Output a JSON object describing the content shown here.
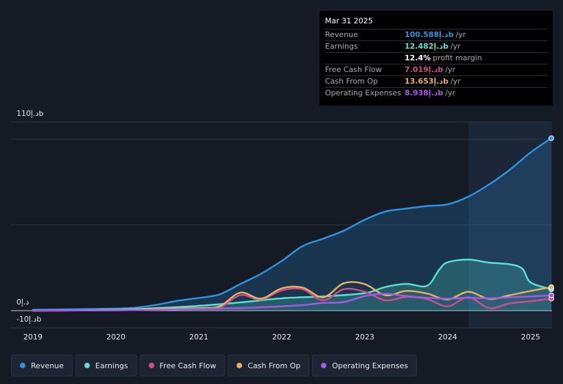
{
  "chart_data": {
    "type": "area",
    "y_unit": "د.إb",
    "y_tick_labels": [
      "110د.إb",
      "0د.إ",
      "-10د.إb"
    ],
    "ylim": [
      -10,
      110
    ],
    "xlim": [
      2019.0,
      2025.25
    ],
    "x_tick_labels": [
      "2019",
      "2020",
      "2021",
      "2022",
      "2023",
      "2024",
      "2025"
    ],
    "x_ticks": [
      2019,
      2020,
      2021,
      2022,
      2023,
      2024,
      2025
    ],
    "highlight_from": 2024.25,
    "grid": true,
    "series": [
      {
        "name": "Revenue",
        "color": "#2b95e4",
        "fill": true,
        "x": [
          2019.0,
          2019.5,
          2020.0,
          2020.25,
          2020.5,
          2020.75,
          2021.0,
          2021.25,
          2021.5,
          2021.75,
          2022.0,
          2022.25,
          2022.5,
          2022.75,
          2023.0,
          2023.25,
          2023.5,
          2023.75,
          2024.0,
          2024.25,
          2024.5,
          2024.75,
          2025.0,
          2025.25
        ],
        "y": [
          0.5,
          0.8,
          1.2,
          1.8,
          3.5,
          5.8,
          7.4,
          9.5,
          15.5,
          21.5,
          29.0,
          37.6,
          42.0,
          46.7,
          53.0,
          57.8,
          59.5,
          61.0,
          62.0,
          66.5,
          73.6,
          82.2,
          92.3,
          100.6
        ]
      },
      {
        "name": "Earnings",
        "color": "#58e0d1",
        "fill": true,
        "x": [
          2019.0,
          2020.0,
          2020.5,
          2021.0,
          2021.5,
          2022.0,
          2022.5,
          2023.0,
          2023.25,
          2023.5,
          2023.75,
          2023.9,
          2024.0,
          2024.25,
          2024.5,
          2024.75,
          2024.9,
          2025.0,
          2025.25
        ],
        "y": [
          0.0,
          0.5,
          1.5,
          2.8,
          4.8,
          7.2,
          8.3,
          10.2,
          13.8,
          15.6,
          14.5,
          24.0,
          28.2,
          29.8,
          28.0,
          27.0,
          24.5,
          16.5,
          12.5
        ]
      },
      {
        "name": "Free Cash Flow",
        "color": "#d24c88",
        "fill": false,
        "x": [
          2019.0,
          2020.0,
          2020.5,
          2021.0,
          2021.25,
          2021.5,
          2021.75,
          2022.0,
          2022.25,
          2022.5,
          2022.75,
          2023.0,
          2023.25,
          2023.5,
          2023.75,
          2024.0,
          2024.25,
          2024.5,
          2024.75,
          2025.0,
          2025.25
        ],
        "y": [
          0.0,
          0.2,
          0.8,
          1.2,
          1.8,
          9.0,
          6.5,
          11.8,
          12.5,
          6.0,
          12.5,
          11.0,
          6.0,
          8.0,
          6.8,
          2.5,
          7.8,
          1.5,
          4.2,
          5.5,
          7.0
        ]
      },
      {
        "name": "Cash From Op",
        "color": "#e8b15c",
        "fill": false,
        "x": [
          2019.0,
          2020.0,
          2020.5,
          2021.0,
          2021.25,
          2021.5,
          2021.75,
          2022.0,
          2022.25,
          2022.5,
          2022.75,
          2023.0,
          2023.25,
          2023.5,
          2023.75,
          2024.0,
          2024.25,
          2024.5,
          2024.75,
          2025.0,
          2025.25
        ],
        "y": [
          0.0,
          0.3,
          1.0,
          1.5,
          2.5,
          10.5,
          7.0,
          13.0,
          13.5,
          7.8,
          16.0,
          15.5,
          9.0,
          11.5,
          10.0,
          6.5,
          11.0,
          6.8,
          9.0,
          11.5,
          13.7
        ]
      },
      {
        "name": "Operating Expenses",
        "color": "#a957e6",
        "fill": false,
        "x": [
          2019.0,
          2020.0,
          2020.5,
          2021.0,
          2021.5,
          2022.0,
          2022.25,
          2022.5,
          2022.75,
          2023.0,
          2023.25,
          2023.5,
          2023.75,
          2024.0,
          2024.25,
          2024.5,
          2024.75,
          2025.0,
          2025.25
        ],
        "y": [
          0.0,
          0.2,
          0.5,
          1.0,
          1.5,
          2.5,
          3.2,
          4.5,
          5.0,
          8.5,
          9.8,
          8.5,
          7.5,
          7.0,
          7.5,
          7.2,
          7.8,
          8.3,
          8.9
        ]
      }
    ]
  },
  "tooltip": {
    "date": "Mar 31 2025",
    "rows": [
      {
        "label": "Revenue",
        "value": "100.588د.إb",
        "unit": "/yr",
        "color": "#2b95e4"
      },
      {
        "label": "Earnings",
        "value": "12.482د.إb",
        "unit": "/yr",
        "color": "#58e0d1"
      },
      {
        "label": "",
        "value": "12.4%",
        "unit": "profit margin",
        "color": "#ffffff"
      },
      {
        "label": "Free Cash Flow",
        "value": "7.019د.إb",
        "unit": "/yr",
        "color": "#d24c88"
      },
      {
        "label": "Cash From Op",
        "value": "13.653د.إb",
        "unit": "/yr",
        "color": "#e8b15c"
      },
      {
        "label": "Operating Expenses",
        "value": "8.938د.إb",
        "unit": "/yr",
        "color": "#a957e6"
      }
    ]
  },
  "legend": [
    {
      "label": "Revenue",
      "color": "#2b95e4"
    },
    {
      "label": "Earnings",
      "color": "#58e0d1"
    },
    {
      "label": "Free Cash Flow",
      "color": "#d24c88"
    },
    {
      "label": "Cash From Op",
      "color": "#e8b15c"
    },
    {
      "label": "Operating Expenses",
      "color": "#a957e6"
    }
  ]
}
